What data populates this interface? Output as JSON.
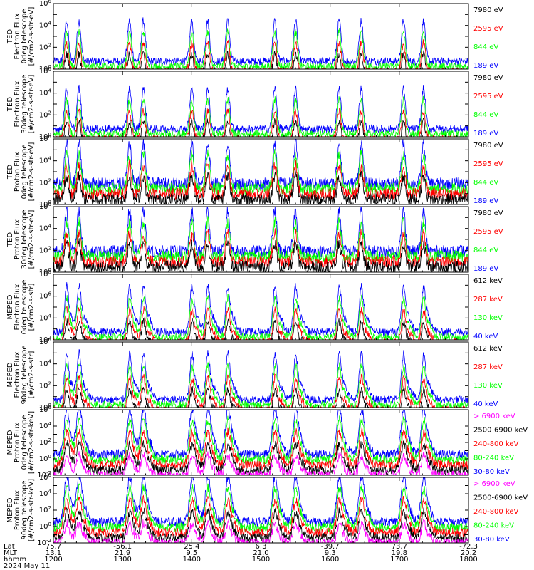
{
  "footer": {
    "row_labels": [
      "Lat",
      "MLT",
      "hhmm",
      "2024 May 11"
    ],
    "columns": [
      {
        "lat": "75.7",
        "mlt": "13.1",
        "hhmm": "1200"
      },
      {
        "lat": "-56.1",
        "mlt": "21.9",
        "hhmm": "1300"
      },
      {
        "lat": "25.4",
        "mlt": "9.5",
        "hhmm": "1400"
      },
      {
        "lat": "6.3",
        "mlt": "21.0",
        "hhmm": "1500"
      },
      {
        "lat": "-39.7",
        "mlt": "9.3",
        "hhmm": "1600"
      },
      {
        "lat": "73.7",
        "mlt": "19.8",
        "hhmm": "1700"
      },
      {
        "lat": "-72.3",
        "mlt": "20.2",
        "hhmm": "1800"
      }
    ]
  },
  "colors": {
    "black": "#000000",
    "red": "#ff0000",
    "green": "#00ff00",
    "blue": "#0000ff",
    "magenta": "#ff00ff"
  },
  "chart_data": [
    {
      "type": "line",
      "panel": "TED electron flux 0 deg",
      "ylabel_lines": [
        "TED",
        "Electron Flux",
        "0deg telescope",
        "[#/cm2-s-str-eV]"
      ],
      "yscale": "log",
      "ylim_exp": [
        0,
        6
      ],
      "xlim": [
        1200,
        1800
      ],
      "series": [
        {
          "name": "7980 eV",
          "color": "#000000"
        },
        {
          "name": "2595 eV",
          "color": "#ff0000"
        },
        {
          "name": "844 eV",
          "color": "#00ff00"
        },
        {
          "name": "189 eV",
          "color": "#0000ff"
        }
      ]
    },
    {
      "type": "line",
      "panel": "TED electron flux 30 deg",
      "ylabel_lines": [
        "TED",
        "Electron Flux",
        "30deg telescope",
        "[#/cm2-s-str-eV]"
      ],
      "yscale": "log",
      "ylim_exp": [
        0,
        6
      ],
      "xlim": [
        1200,
        1800
      ],
      "series": [
        {
          "name": "7980 eV",
          "color": "#000000"
        },
        {
          "name": "2595 eV",
          "color": "#ff0000"
        },
        {
          "name": "844 eV",
          "color": "#00ff00"
        },
        {
          "name": "189 eV",
          "color": "#0000ff"
        }
      ]
    },
    {
      "type": "line",
      "panel": "TED proton flux 0 deg",
      "ylabel_lines": [
        "TED",
        "Proton Flux",
        "0deg telescope",
        "[#/cm2-s-str-eV]"
      ],
      "yscale": "log",
      "ylim_exp": [
        0,
        6
      ],
      "xlim": [
        1200,
        1800
      ],
      "series": [
        {
          "name": "7980 eV",
          "color": "#000000"
        },
        {
          "name": "2595 eV",
          "color": "#ff0000"
        },
        {
          "name": "844 eV",
          "color": "#00ff00"
        },
        {
          "name": "189 eV",
          "color": "#0000ff"
        }
      ]
    },
    {
      "type": "line",
      "panel": "TED proton flux 30 deg",
      "ylabel_lines": [
        "TED",
        "Proton Flux",
        "30deg telescope",
        "[#/cm2-s-str-eV]"
      ],
      "yscale": "log",
      "ylim_exp": [
        0,
        6
      ],
      "xlim": [
        1200,
        1800
      ],
      "series": [
        {
          "name": "7980 eV",
          "color": "#000000"
        },
        {
          "name": "2595 eV",
          "color": "#ff0000"
        },
        {
          "name": "844 eV",
          "color": "#00ff00"
        },
        {
          "name": "189 eV",
          "color": "#0000ff"
        }
      ]
    },
    {
      "type": "line",
      "panel": "MEPED electron flux 0 deg",
      "ylabel_lines": [
        "MEPED",
        "Electron Flux",
        "0deg telescope",
        "[#/cm2-s-str]"
      ],
      "yscale": "log",
      "ylim_exp": [
        2,
        8
      ],
      "xlim": [
        1200,
        1800
      ],
      "series": [
        {
          "name": "612 keV",
          "color": "#000000"
        },
        {
          "name": "287 keV",
          "color": "#ff0000"
        },
        {
          "name": "130 keV",
          "color": "#00ff00"
        },
        {
          "name": "40 keV",
          "color": "#0000ff"
        }
      ]
    },
    {
      "type": "line",
      "panel": "MEPED electron flux 90 deg",
      "ylabel_lines": [
        "MEPED",
        "Electron Flux",
        "90deg telescope",
        "[#/cm2-s-str]"
      ],
      "yscale": "log",
      "ylim_exp": [
        0,
        6
      ],
      "xlim": [
        1200,
        1800
      ],
      "series": [
        {
          "name": "612 keV",
          "color": "#000000"
        },
        {
          "name": "287 keV",
          "color": "#ff0000"
        },
        {
          "name": "130 keV",
          "color": "#00ff00"
        },
        {
          "name": "40 keV",
          "color": "#0000ff"
        }
      ]
    },
    {
      "type": "line",
      "panel": "MEPED proton flux 0 deg",
      "ylabel_lines": [
        "MEPED",
        "Proton Flux",
        "0deg telescope",
        "[#/cm2-s-str-keV]"
      ],
      "yscale": "log",
      "ylim_exp": [
        -2,
        6
      ],
      "xlim": [
        1200,
        1800
      ],
      "series": [
        {
          "name": "> 6900 keV",
          "color": "#ff00ff"
        },
        {
          "name": "2500-6900 keV",
          "color": "#000000"
        },
        {
          "name": "240-800 keV",
          "color": "#ff0000"
        },
        {
          "name": "80-240 keV",
          "color": "#00ff00"
        },
        {
          "name": "30-80 keV",
          "color": "#0000ff"
        }
      ]
    },
    {
      "type": "line",
      "panel": "MEPED proton flux 90 deg",
      "ylabel_lines": [
        "MEPED",
        "Proton Flux",
        "90deg telescope",
        "[#/cm2-s-str-keV]"
      ],
      "yscale": "log",
      "ylim_exp": [
        -2,
        6
      ],
      "xlim": [
        1200,
        1800
      ],
      "series": [
        {
          "name": "> 6900 keV",
          "color": "#ff00ff"
        },
        {
          "name": "2500-6900 keV",
          "color": "#000000"
        },
        {
          "name": "240-800 keV",
          "color": "#ff0000"
        },
        {
          "name": "80-240 keV",
          "color": "#00ff00"
        },
        {
          "name": "30-80 keV",
          "color": "#0000ff"
        }
      ]
    }
  ]
}
